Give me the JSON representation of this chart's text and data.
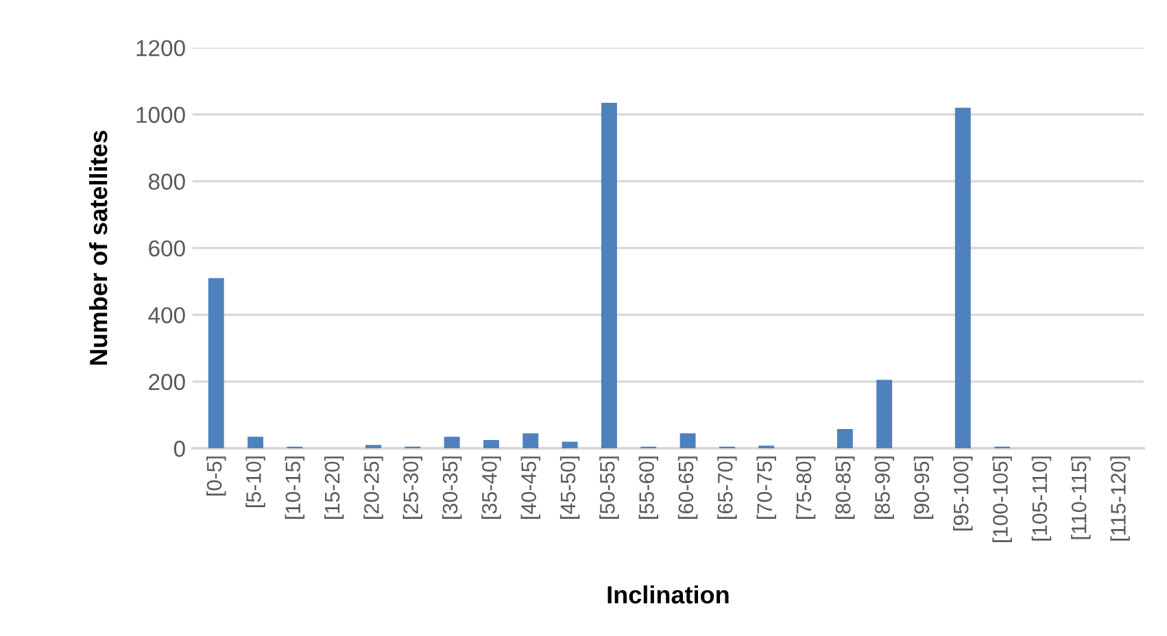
{
  "chart_data": {
    "type": "bar",
    "xlabel": "Inclination",
    "ylabel": "Number of satellites",
    "categories": [
      "[0-5]",
      "[5-10]",
      "[10-15]",
      "[15-20]",
      "[20-25]",
      "[25-30]",
      "[30-35]",
      "[35-40]",
      "[40-45]",
      "[45-50]",
      "[50-55]",
      "[55-60]",
      "[60-65]",
      "[65-70]",
      "[70-75]",
      "[75-80]",
      "[80-85]",
      "[85-90]",
      "[90-95]",
      "[95-100]",
      "[100-105]",
      "[105-110]",
      "[110-115]",
      "[115-120]"
    ],
    "values": [
      510,
      35,
      5,
      0,
      10,
      5,
      35,
      25,
      45,
      20,
      1035,
      5,
      45,
      5,
      8,
      0,
      58,
      205,
      0,
      1020,
      5,
      0,
      0,
      0
    ],
    "color": "#4f81bd",
    "ylim": [
      0,
      1200
    ],
    "yticks": [
      0,
      200,
      400,
      600,
      800,
      1000,
      1200
    ],
    "grid": "y",
    "legend": false
  }
}
